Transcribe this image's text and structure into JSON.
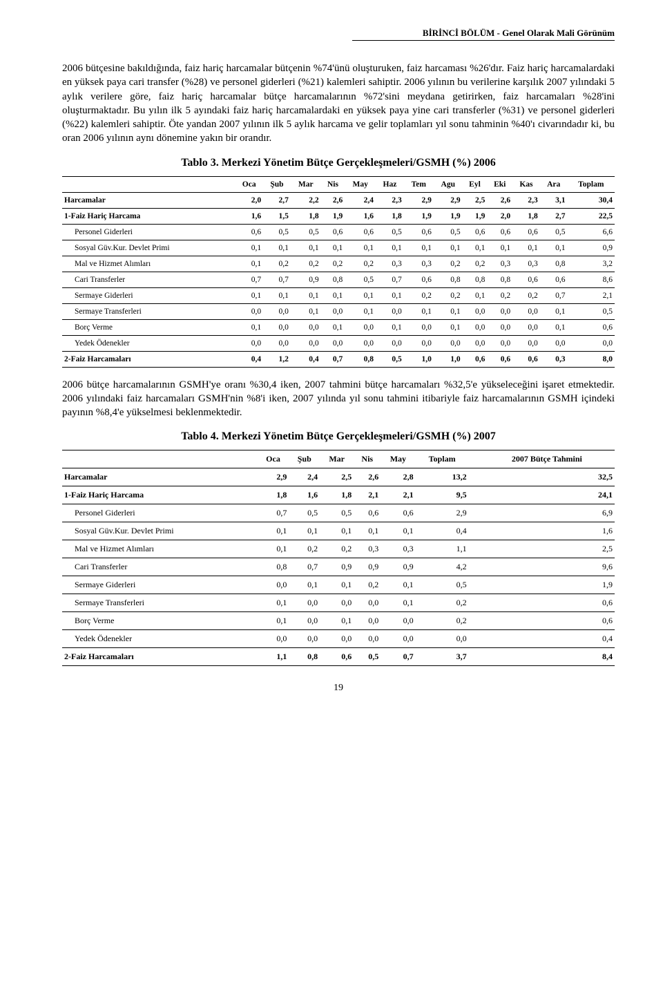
{
  "header_right": "BİRİNCİ BÖLÜM - Genel Olarak Mali Görünüm",
  "para1": "2006 bütçesine bakıldığında, faiz hariç harcamalar bütçenin %74'ünü oluşturuken, faiz harcaması %26'dır. Faiz hariç harcamalardaki en yüksek paya cari transfer (%28) ve personel giderleri (%21) kalemleri sahiptir. 2006 yılının bu verilerine karşılık 2007 yılındaki 5 aylık verilere göre, faiz hariç harcamalar bütçe harcamalarının %72'sini meydana getirirken, faiz harcamaları %28'ini oluşturmaktadır. Bu yılın ilk 5 ayındaki faiz hariç harcamalardaki en yüksek paya yine cari transferler (%31) ve personel giderleri (%22) kalemleri sahiptir. Öte yandan 2007 yılının ilk 5 aylık harcama ve gelir toplamları yıl sonu tahminin %40'ı civarındadır ki, bu oran 2006 yılının aynı dönemine yakın bir orandır.",
  "caption1": "Tablo 3. Merkezi Yönetim Bütçe Gerçekleşmeleri/GSMH  (%) 2006",
  "table1": {
    "columns": [
      "",
      "Oca",
      "Şub",
      "Mar",
      "Nis",
      "May",
      "Haz",
      "Tem",
      "Agu",
      "Eyl",
      "Eki",
      "Kas",
      "Ara",
      "Toplam"
    ],
    "rows": [
      {
        "label": "Harcamalar",
        "bold": true,
        "indent": 0,
        "vals": [
          "2,0",
          "2,7",
          "2,2",
          "2,6",
          "2,4",
          "2,3",
          "2,9",
          "2,9",
          "2,5",
          "2,6",
          "2,3",
          "3,1",
          "30,4"
        ]
      },
      {
        "label": "1-Faiz Hariç Harcama",
        "bold": true,
        "indent": 0,
        "vals": [
          "1,6",
          "1,5",
          "1,8",
          "1,9",
          "1,6",
          "1,8",
          "1,9",
          "1,9",
          "1,9",
          "2,0",
          "1,8",
          "2,7",
          "22,5"
        ]
      },
      {
        "label": "Personel Giderleri",
        "bold": false,
        "indent": 1,
        "vals": [
          "0,6",
          "0,5",
          "0,5",
          "0,6",
          "0,6",
          "0,5",
          "0,6",
          "0,5",
          "0,6",
          "0,6",
          "0,6",
          "0,5",
          "6,6"
        ]
      },
      {
        "label": "Sosyal Güv.Kur. Devlet Primi",
        "bold": false,
        "indent": 1,
        "vals": [
          "0,1",
          "0,1",
          "0,1",
          "0,1",
          "0,1",
          "0,1",
          "0,1",
          "0,1",
          "0,1",
          "0,1",
          "0,1",
          "0,1",
          "0,9"
        ]
      },
      {
        "label": "Mal ve Hizmet Alımları",
        "bold": false,
        "indent": 1,
        "vals": [
          "0,1",
          "0,2",
          "0,2",
          "0,2",
          "0,2",
          "0,3",
          "0,3",
          "0,2",
          "0,2",
          "0,3",
          "0,3",
          "0,8",
          "3,2"
        ]
      },
      {
        "label": "Cari Transferler",
        "bold": false,
        "indent": 1,
        "vals": [
          "0,7",
          "0,7",
          "0,9",
          "0,8",
          "0,5",
          "0,7",
          "0,6",
          "0,8",
          "0,8",
          "0,8",
          "0,6",
          "0,6",
          "8,6"
        ]
      },
      {
        "label": "Sermaye Giderleri",
        "bold": false,
        "indent": 1,
        "vals": [
          "0,1",
          "0,1",
          "0,1",
          "0,1",
          "0,1",
          "0,1",
          "0,2",
          "0,2",
          "0,1",
          "0,2",
          "0,2",
          "0,7",
          "2,1"
        ]
      },
      {
        "label": "Sermaye Transferleri",
        "bold": false,
        "indent": 1,
        "vals": [
          "0,0",
          "0,0",
          "0,1",
          "0,0",
          "0,1",
          "0,0",
          "0,1",
          "0,1",
          "0,0",
          "0,0",
          "0,0",
          "0,1",
          "0,5"
        ]
      },
      {
        "label": "Borç Verme",
        "bold": false,
        "indent": 1,
        "vals": [
          "0,1",
          "0,0",
          "0,0",
          "0,1",
          "0,0",
          "0,1",
          "0,0",
          "0,1",
          "0,0",
          "0,0",
          "0,0",
          "0,1",
          "0,6"
        ]
      },
      {
        "label": "Yedek Ödenekler",
        "bold": false,
        "indent": 1,
        "vals": [
          "0,0",
          "0,0",
          "0,0",
          "0,0",
          "0,0",
          "0,0",
          "0,0",
          "0,0",
          "0,0",
          "0,0",
          "0,0",
          "0,0",
          "0,0"
        ]
      },
      {
        "label": "2-Faiz Harcamaları",
        "bold": true,
        "indent": 0,
        "vals": [
          "0,4",
          "1,2",
          "0,4",
          "0,7",
          "0,8",
          "0,5",
          "1,0",
          "1,0",
          "0,6",
          "0,6",
          "0,6",
          "0,3",
          "8,0"
        ]
      }
    ]
  },
  "para2": "2006 bütçe harcamalarının GSMH'ye oranı %30,4 iken, 2007 tahmini bütçe harcamaları %32,5'e yükseleceğini işaret etmektedir. 2006 yılındaki faiz harcamaları GSMH'nin %8'i iken, 2007 yılında yıl sonu tahmini itibariyle faiz harcamalarının GSMH içindeki payının %8,4'e yükselmesi beklenmektedir.",
  "caption2": "Tablo 4. Merkezi Yönetim Bütçe Gerçekleşmeleri/GSMH  (%) 2007",
  "table2": {
    "columns": [
      "",
      "Oca",
      "Şub",
      "Mar",
      "Nis",
      "May",
      "Toplam",
      "2007 Bütçe Tahmini"
    ],
    "rows": [
      {
        "label": "Harcamalar",
        "bold": true,
        "indent": 0,
        "vals": [
          "2,9",
          "2,4",
          "2,5",
          "2,6",
          "2,8",
          "13,2",
          "32,5"
        ]
      },
      {
        "label": "1-Faiz Hariç Harcama",
        "bold": true,
        "indent": 0,
        "vals": [
          "1,8",
          "1,6",
          "1,8",
          "2,1",
          "2,1",
          "9,5",
          "24,1"
        ]
      },
      {
        "label": "Personel Giderleri",
        "bold": false,
        "indent": 1,
        "vals": [
          "0,7",
          "0,5",
          "0,5",
          "0,6",
          "0,6",
          "2,9",
          "6,9"
        ]
      },
      {
        "label": "Sosyal Güv.Kur. Devlet Primi",
        "bold": false,
        "indent": 1,
        "vals": [
          "0,1",
          "0,1",
          "0,1",
          "0,1",
          "0,1",
          "0,4",
          "1,6"
        ]
      },
      {
        "label": "Mal ve Hizmet Alımları",
        "bold": false,
        "indent": 1,
        "vals": [
          "0,1",
          "0,2",
          "0,2",
          "0,3",
          "0,3",
          "1,1",
          "2,5"
        ]
      },
      {
        "label": "Cari Transferler",
        "bold": false,
        "indent": 1,
        "vals": [
          "0,8",
          "0,7",
          "0,9",
          "0,9",
          "0,9",
          "4,2",
          "9,6"
        ]
      },
      {
        "label": "Sermaye Giderleri",
        "bold": false,
        "indent": 1,
        "vals": [
          "0,0",
          "0,1",
          "0,1",
          "0,2",
          "0,1",
          "0,5",
          "1,9"
        ]
      },
      {
        "label": "Sermaye Transferleri",
        "bold": false,
        "indent": 1,
        "vals": [
          "0,1",
          "0,0",
          "0,0",
          "0,0",
          "0,1",
          "0,2",
          "0,6"
        ]
      },
      {
        "label": "Borç Verme",
        "bold": false,
        "indent": 1,
        "vals": [
          "0,1",
          "0,0",
          "0,1",
          "0,0",
          "0,0",
          "0,2",
          "0,6"
        ]
      },
      {
        "label": "Yedek Ödenekler",
        "bold": false,
        "indent": 1,
        "vals": [
          "0,0",
          "0,0",
          "0,0",
          "0,0",
          "0,0",
          "0,0",
          "0,4"
        ]
      },
      {
        "label": "2-Faiz Harcamaları",
        "bold": true,
        "indent": 0,
        "vals": [
          "1,1",
          "0,8",
          "0,6",
          "0,5",
          "0,7",
          "3,7",
          "8,4"
        ]
      }
    ]
  },
  "page_number": "19"
}
